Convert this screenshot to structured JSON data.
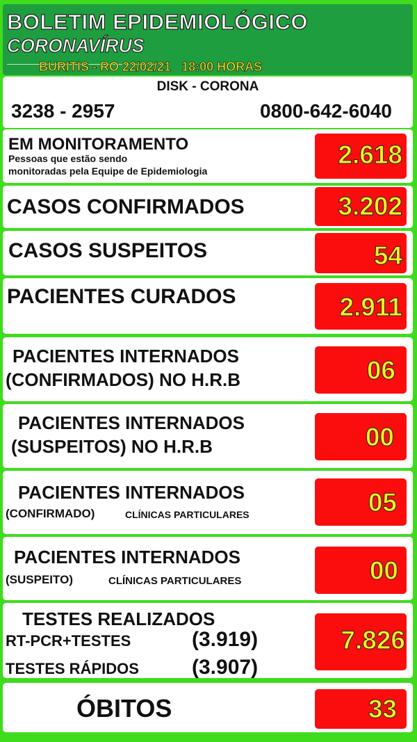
{
  "header": {
    "title": "BOLETIM EPIDEMIOLÓGICO",
    "subtitle": "CORONAVÍRUS",
    "location_date": "BURITIS - RO 22/02/21   18:00 HORAS"
  },
  "disk": {
    "title": "DISK - CORONA",
    "phone1": "3238 - 2957",
    "phone2": "0800-642-6040"
  },
  "colors": {
    "background": "#3fdc1e",
    "header": "#1f9e3f",
    "value_box": "#fb0d0d",
    "value_text": "#f4ef22"
  },
  "stats": [
    {
      "label": "EM MONITORAMENTO",
      "sub1": "Pessoas que estão sendo",
      "sub2": "monitoradas pela Equipe de Epidemiologia",
      "value": "2.618"
    },
    {
      "label": "CASOS CONFIRMADOS",
      "value": "3.202"
    },
    {
      "label": "CASOS SUSPEITOS",
      "value": "54"
    },
    {
      "label": "PACIENTES CURADOS",
      "value": "2.911"
    },
    {
      "label": "PACIENTES INTERNADOS",
      "sub1": "(CONFIRMADOS) NO H.R.B",
      "value": "06"
    },
    {
      "label": "PACIENTES INTERNADOS",
      "sub1": "(SUSPEITOS) NO H.R.B",
      "value": "00"
    },
    {
      "label": "PACIENTES INTERNADOS",
      "sub1": "(CONFIRMADO)",
      "sub2": "CLÍNICAS PARTICULARES",
      "value": "05"
    },
    {
      "label": "PACIENTES INTERNADOS",
      "sub1": "(SUSPEITO)",
      "sub2": "CLÍNICAS PARTICULARES",
      "value": "00"
    },
    {
      "label": "TESTES REALIZADOS",
      "sub1": "RT-PCR+TESTES",
      "sub1_value": "(3.919)",
      "sub2": "TESTES RÁPIDOS",
      "sub2_value": "(3.907)",
      "value": "7.826"
    },
    {
      "label": "ÓBITOS",
      "value": "33"
    }
  ]
}
